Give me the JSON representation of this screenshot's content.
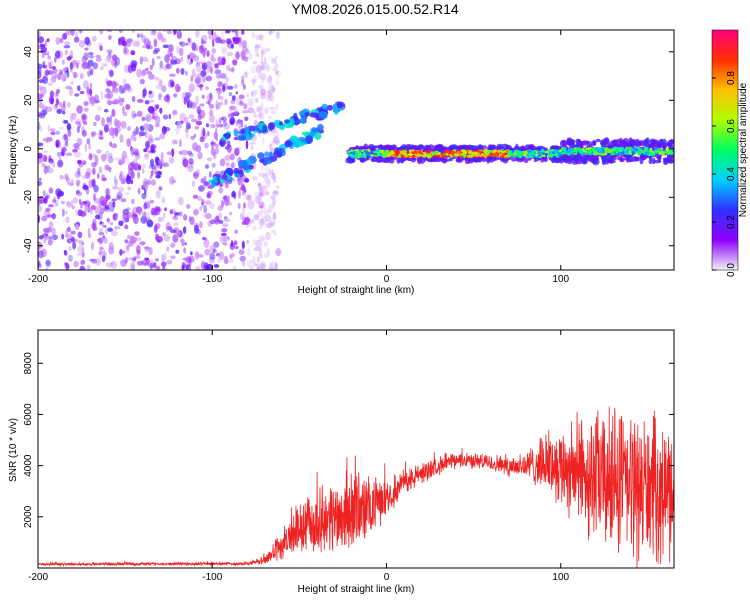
{
  "page_title": "YM08.2026.015.00.52.R14",
  "chart_data": [
    {
      "type": "heatmap",
      "title": "YM08.2026.015.00.52.R14",
      "xlabel": "Height of straight line (km)",
      "ylabel": "Frequency (Hz)",
      "xlim": [
        -200,
        165
      ],
      "ylim": [
        -50,
        49
      ],
      "x_ticks": [
        "-200",
        "-100",
        "0",
        "100"
      ],
      "x_tick_values": [
        -200,
        -100,
        0,
        100
      ],
      "y_ticks": [
        "40",
        "20",
        "0",
        "-20",
        "-40"
      ],
      "y_tick_values": [
        40,
        20,
        0,
        -20,
        -40
      ],
      "colorbar": {
        "label": "Normalized spectral amplitude",
        "range": [
          0,
          1
        ],
        "ticks": [
          "0.0",
          "0.2",
          "0.4",
          "0.6",
          "0.8"
        ],
        "tick_values": [
          0.0,
          0.2,
          0.4,
          0.6,
          0.8
        ],
        "colors": [
          "#f2f2f2",
          "#9000ff",
          "#3030ff",
          "#00d0ff",
          "#00ff60",
          "#b0ff00",
          "#ffc000",
          "#ff3000",
          "#ff0080"
        ]
      },
      "features": {
        "noise_region_x": [
          -200,
          -70
        ],
        "main_trace": {
          "x_start": -22,
          "x_end": 165,
          "freq": -2,
          "peak_x": [
            0,
            70
          ]
        },
        "diagonal_tracks": [
          {
            "x": [
              -100,
              -35
            ],
            "freq": [
              -14,
              8
            ]
          },
          {
            "x": [
              -95,
              -25
            ],
            "freq": [
              3,
              18
            ]
          }
        ]
      }
    },
    {
      "type": "line",
      "xlabel": "Height of straight line (km)",
      "ylabel": "SNR (10 * v/v)",
      "xlim": [
        -200,
        165
      ],
      "ylim": [
        0,
        9300
      ],
      "x_ticks": [
        "-200",
        "-100",
        "0",
        "100"
      ],
      "x_tick_values": [
        -200,
        -100,
        0,
        100
      ],
      "y_ticks": [
        "8000",
        "6000",
        "4000",
        "2000"
      ],
      "y_tick_values": [
        8000,
        6000,
        4000,
        2000
      ],
      "color": "#ee2222",
      "envelope": {
        "x": [
          -200,
          -80,
          -70,
          -60,
          -50,
          -40,
          -30,
          -20,
          -10,
          0,
          10,
          20,
          30,
          40,
          50,
          60,
          70,
          80,
          90,
          100,
          110,
          120,
          130,
          140,
          150,
          160,
          165
        ],
        "mean": [
          150,
          170,
          300,
          900,
          1500,
          1800,
          2000,
          2200,
          2300,
          2800,
          3300,
          3700,
          4000,
          4200,
          4200,
          4100,
          4000,
          4000,
          4100,
          4000,
          3800,
          3500,
          3300,
          3200,
          3100,
          3000,
          3100
        ],
        "amp": [
          60,
          80,
          200,
          700,
          1200,
          1400,
          1700,
          1900,
          1500,
          800,
          600,
          500,
          400,
          350,
          350,
          400,
          500,
          700,
          1200,
          1800,
          2500,
          3100,
          3400,
          3500,
          3400,
          3100,
          2800
        ]
      }
    }
  ]
}
